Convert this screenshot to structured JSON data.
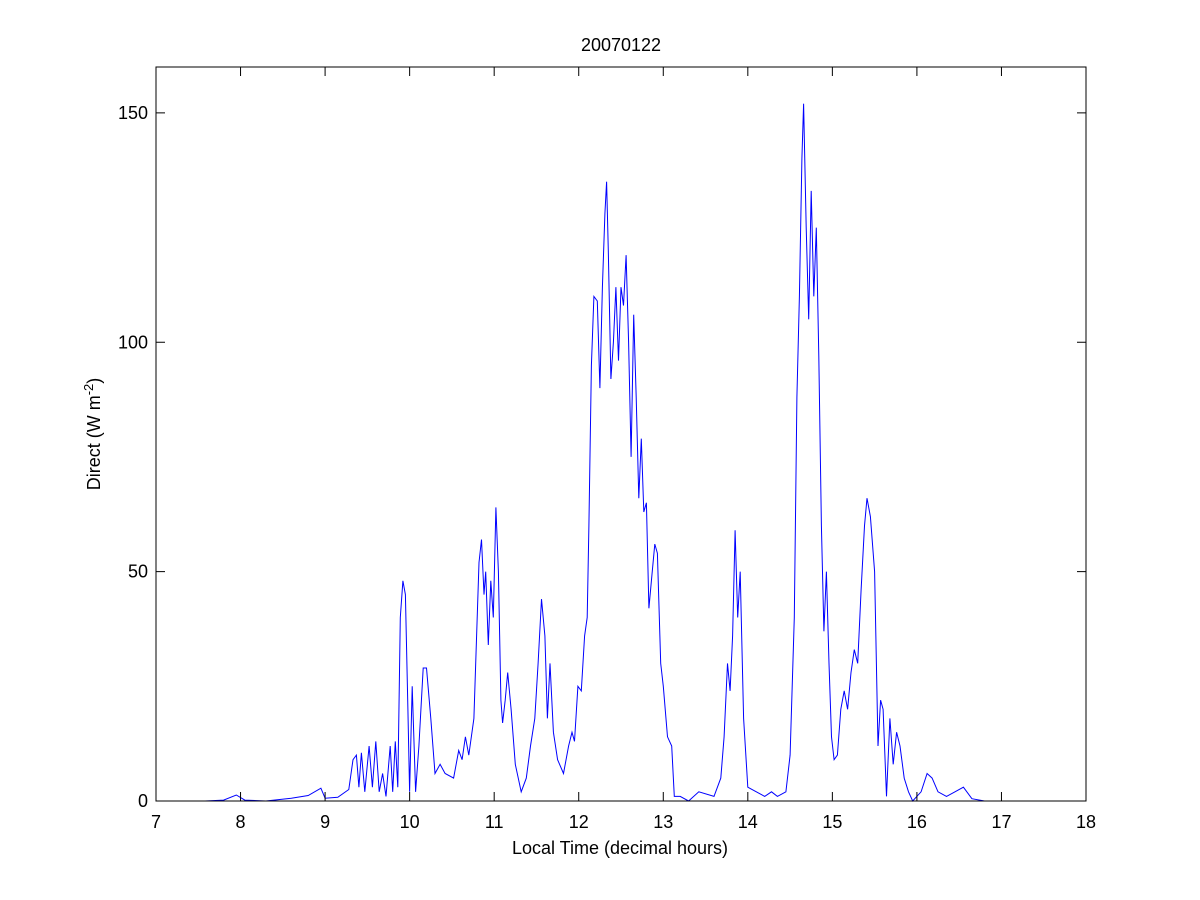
{
  "chart_data": {
    "type": "line",
    "title": "20070122",
    "xlabel": "Local Time (decimal hours)",
    "ylabel_main": "Direct (W m",
    "ylabel_sup": "-2",
    "ylabel_close": ")",
    "xlim": [
      7,
      18
    ],
    "ylim": [
      0,
      160
    ],
    "xticks": [
      7,
      8,
      9,
      10,
      11,
      12,
      13,
      14,
      15,
      16,
      17,
      18
    ],
    "yticks": [
      0,
      50,
      100,
      150
    ],
    "grid": false,
    "legend": "none",
    "series": [
      {
        "color": "#0000ff",
        "points": [
          [
            7.58,
            0
          ],
          [
            7.8,
            0.2
          ],
          [
            7.95,
            1.3
          ],
          [
            8.05,
            0.2
          ],
          [
            8.3,
            0
          ],
          [
            8.6,
            0.6
          ],
          [
            8.8,
            1.2
          ],
          [
            8.95,
            2.8
          ],
          [
            9.0,
            0.6
          ],
          [
            9.15,
            0.8
          ],
          [
            9.28,
            2.5
          ],
          [
            9.33,
            9
          ],
          [
            9.37,
            10
          ],
          [
            9.4,
            3
          ],
          [
            9.43,
            10.5
          ],
          [
            9.47,
            2
          ],
          [
            9.52,
            12
          ],
          [
            9.56,
            3
          ],
          [
            9.6,
            13
          ],
          [
            9.64,
            2
          ],
          [
            9.68,
            6
          ],
          [
            9.72,
            1
          ],
          [
            9.77,
            12
          ],
          [
            9.8,
            2
          ],
          [
            9.83,
            13
          ],
          [
            9.86,
            3
          ],
          [
            9.89,
            40
          ],
          [
            9.92,
            48
          ],
          [
            9.95,
            45
          ],
          [
            9.98,
            20
          ],
          [
            10.0,
            2
          ],
          [
            10.03,
            25
          ],
          [
            10.07,
            2
          ],
          [
            10.11,
            12
          ],
          [
            10.16,
            29
          ],
          [
            10.2,
            29
          ],
          [
            10.25,
            18
          ],
          [
            10.3,
            6
          ],
          [
            10.36,
            8
          ],
          [
            10.42,
            6
          ],
          [
            10.52,
            5
          ],
          [
            10.58,
            11
          ],
          [
            10.62,
            9
          ],
          [
            10.66,
            14
          ],
          [
            10.7,
            10
          ],
          [
            10.76,
            18
          ],
          [
            10.82,
            52
          ],
          [
            10.85,
            57
          ],
          [
            10.88,
            45
          ],
          [
            10.9,
            50
          ],
          [
            10.93,
            34
          ],
          [
            10.96,
            48
          ],
          [
            10.99,
            40
          ],
          [
            11.02,
            64
          ],
          [
            11.05,
            50
          ],
          [
            11.08,
            22
          ],
          [
            11.1,
            17
          ],
          [
            11.13,
            22
          ],
          [
            11.16,
            28
          ],
          [
            11.2,
            20
          ],
          [
            11.25,
            8
          ],
          [
            11.32,
            2
          ],
          [
            11.38,
            5
          ],
          [
            11.43,
            12
          ],
          [
            11.48,
            18
          ],
          [
            11.52,
            30
          ],
          [
            11.56,
            44
          ],
          [
            11.6,
            36
          ],
          [
            11.63,
            18
          ],
          [
            11.66,
            30
          ],
          [
            11.7,
            15
          ],
          [
            11.75,
            9
          ],
          [
            11.82,
            6
          ],
          [
            11.88,
            12
          ],
          [
            11.92,
            15
          ],
          [
            11.95,
            13
          ],
          [
            11.99,
            25
          ],
          [
            12.03,
            24
          ],
          [
            12.07,
            36
          ],
          [
            12.1,
            40
          ],
          [
            12.12,
            60
          ],
          [
            12.15,
            95
          ],
          [
            12.18,
            110
          ],
          [
            12.22,
            109
          ],
          [
            12.25,
            90
          ],
          [
            12.28,
            112
          ],
          [
            12.31,
            128
          ],
          [
            12.33,
            135
          ],
          [
            12.35,
            120
          ],
          [
            12.38,
            92
          ],
          [
            12.41,
            100
          ],
          [
            12.44,
            112
          ],
          [
            12.47,
            96
          ],
          [
            12.5,
            112
          ],
          [
            12.53,
            108
          ],
          [
            12.56,
            119
          ],
          [
            12.59,
            100
          ],
          [
            12.62,
            75
          ],
          [
            12.65,
            106
          ],
          [
            12.68,
            88
          ],
          [
            12.71,
            66
          ],
          [
            12.74,
            79
          ],
          [
            12.77,
            63
          ],
          [
            12.8,
            65
          ],
          [
            12.83,
            42
          ],
          [
            12.86,
            48
          ],
          [
            12.9,
            56
          ],
          [
            12.93,
            54
          ],
          [
            12.97,
            30
          ],
          [
            13.0,
            25
          ],
          [
            13.05,
            14
          ],
          [
            13.1,
            12
          ],
          [
            13.13,
            1
          ],
          [
            13.2,
            1
          ],
          [
            13.3,
            0
          ],
          [
            13.42,
            2
          ],
          [
            13.6,
            1
          ],
          [
            13.68,
            5
          ],
          [
            13.72,
            14
          ],
          [
            13.76,
            30
          ],
          [
            13.79,
            24
          ],
          [
            13.82,
            36
          ],
          [
            13.85,
            59
          ],
          [
            13.88,
            40
          ],
          [
            13.91,
            50
          ],
          [
            13.95,
            18
          ],
          [
            14.0,
            3
          ],
          [
            14.1,
            2
          ],
          [
            14.2,
            1
          ],
          [
            14.28,
            2
          ],
          [
            14.35,
            1
          ],
          [
            14.45,
            2
          ],
          [
            14.5,
            10
          ],
          [
            14.55,
            40
          ],
          [
            14.58,
            88
          ],
          [
            14.61,
            110
          ],
          [
            14.64,
            140
          ],
          [
            14.66,
            152
          ],
          [
            14.69,
            125
          ],
          [
            14.72,
            105
          ],
          [
            14.75,
            133
          ],
          [
            14.78,
            110
          ],
          [
            14.81,
            125
          ],
          [
            14.84,
            97
          ],
          [
            14.87,
            60
          ],
          [
            14.9,
            37
          ],
          [
            14.93,
            50
          ],
          [
            14.96,
            30
          ],
          [
            14.99,
            14
          ],
          [
            15.02,
            9
          ],
          [
            15.06,
            10
          ],
          [
            15.1,
            20
          ],
          [
            15.14,
            24
          ],
          [
            15.18,
            20
          ],
          [
            15.22,
            28
          ],
          [
            15.26,
            33
          ],
          [
            15.3,
            30
          ],
          [
            15.34,
            46
          ],
          [
            15.38,
            60
          ],
          [
            15.41,
            66
          ],
          [
            15.45,
            62
          ],
          [
            15.5,
            50
          ],
          [
            15.54,
            12
          ],
          [
            15.57,
            22
          ],
          [
            15.6,
            20
          ],
          [
            15.64,
            1
          ],
          [
            15.68,
            18
          ],
          [
            15.72,
            8
          ],
          [
            15.76,
            15
          ],
          [
            15.8,
            12
          ],
          [
            15.85,
            5
          ],
          [
            15.9,
            2
          ],
          [
            15.95,
            0
          ],
          [
            16.05,
            2
          ],
          [
            16.12,
            6
          ],
          [
            16.18,
            5
          ],
          [
            16.25,
            2
          ],
          [
            16.35,
            1
          ],
          [
            16.45,
            2
          ],
          [
            16.55,
            3
          ],
          [
            16.65,
            0.5
          ],
          [
            16.8,
            0
          ],
          [
            17.0,
            0
          ]
        ]
      }
    ]
  }
}
